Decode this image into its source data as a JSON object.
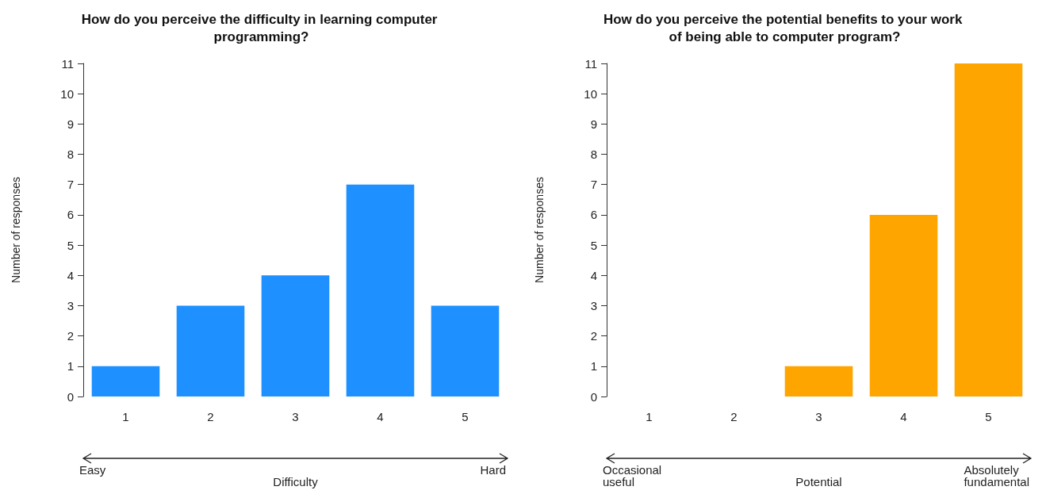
{
  "chart_data": [
    {
      "type": "bar",
      "title": "How do you perceive the difficulty in learning computer programming?",
      "xlabel": "Difficulty",
      "ylabel": "Number of responses",
      "categories": [
        "1",
        "2",
        "3",
        "4",
        "5"
      ],
      "values": [
        1,
        3,
        4,
        7,
        3
      ],
      "color": "#1e90ff",
      "ylim": [
        0,
        11
      ],
      "yticks": [
        0,
        1,
        2,
        3,
        4,
        5,
        6,
        7,
        8,
        9,
        10,
        11
      ],
      "grid": false,
      "annotations": [
        "Easy",
        "Hard"
      ]
    },
    {
      "type": "bar",
      "title": "How do you perceive the potential benefits to your work of being able to computer program?",
      "xlabel": "Potential",
      "ylabel": "Number of responses",
      "categories": [
        "1",
        "2",
        "3",
        "4",
        "5"
      ],
      "values": [
        0,
        0,
        1,
        6,
        11
      ],
      "color": "#ffa500",
      "ylim": [
        0,
        11
      ],
      "yticks": [
        0,
        1,
        2,
        3,
        4,
        5,
        6,
        7,
        8,
        9,
        10,
        11
      ],
      "grid": false,
      "annotations": [
        "Occasional useful",
        "Absolutely fundamental"
      ]
    }
  ]
}
